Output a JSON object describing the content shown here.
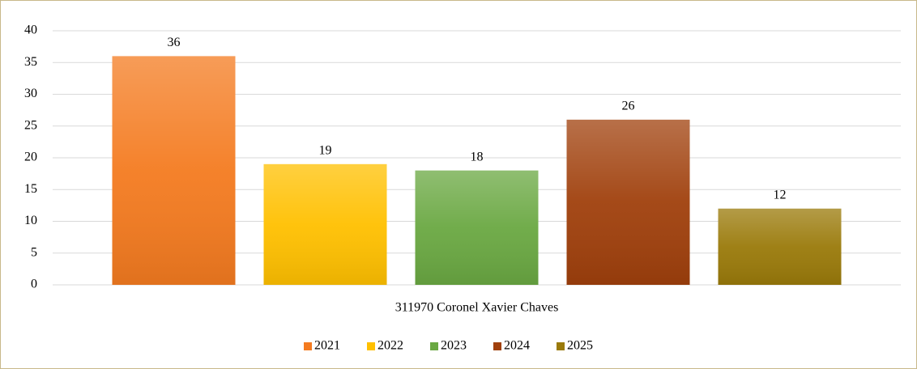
{
  "chart_data": {
    "type": "bar",
    "categories": [
      "311970 Coronel Xavier Chaves"
    ],
    "series": [
      {
        "name": "2021",
        "color": "#f47b20",
        "values": [
          36
        ]
      },
      {
        "name": "2022",
        "color": "#ffc000",
        "values": [
          19
        ]
      },
      {
        "name": "2023",
        "color": "#6aa842",
        "values": [
          18
        ]
      },
      {
        "name": "2024",
        "color": "#a0400c",
        "values": [
          26
        ]
      },
      {
        "name": "2025",
        "color": "#9a7a0a",
        "values": [
          12
        ]
      }
    ],
    "ylim": [
      0,
      40
    ],
    "yticks": [
      0,
      5,
      10,
      15,
      20,
      25,
      30,
      35,
      40
    ],
    "grid": true,
    "legend": "bottom"
  }
}
